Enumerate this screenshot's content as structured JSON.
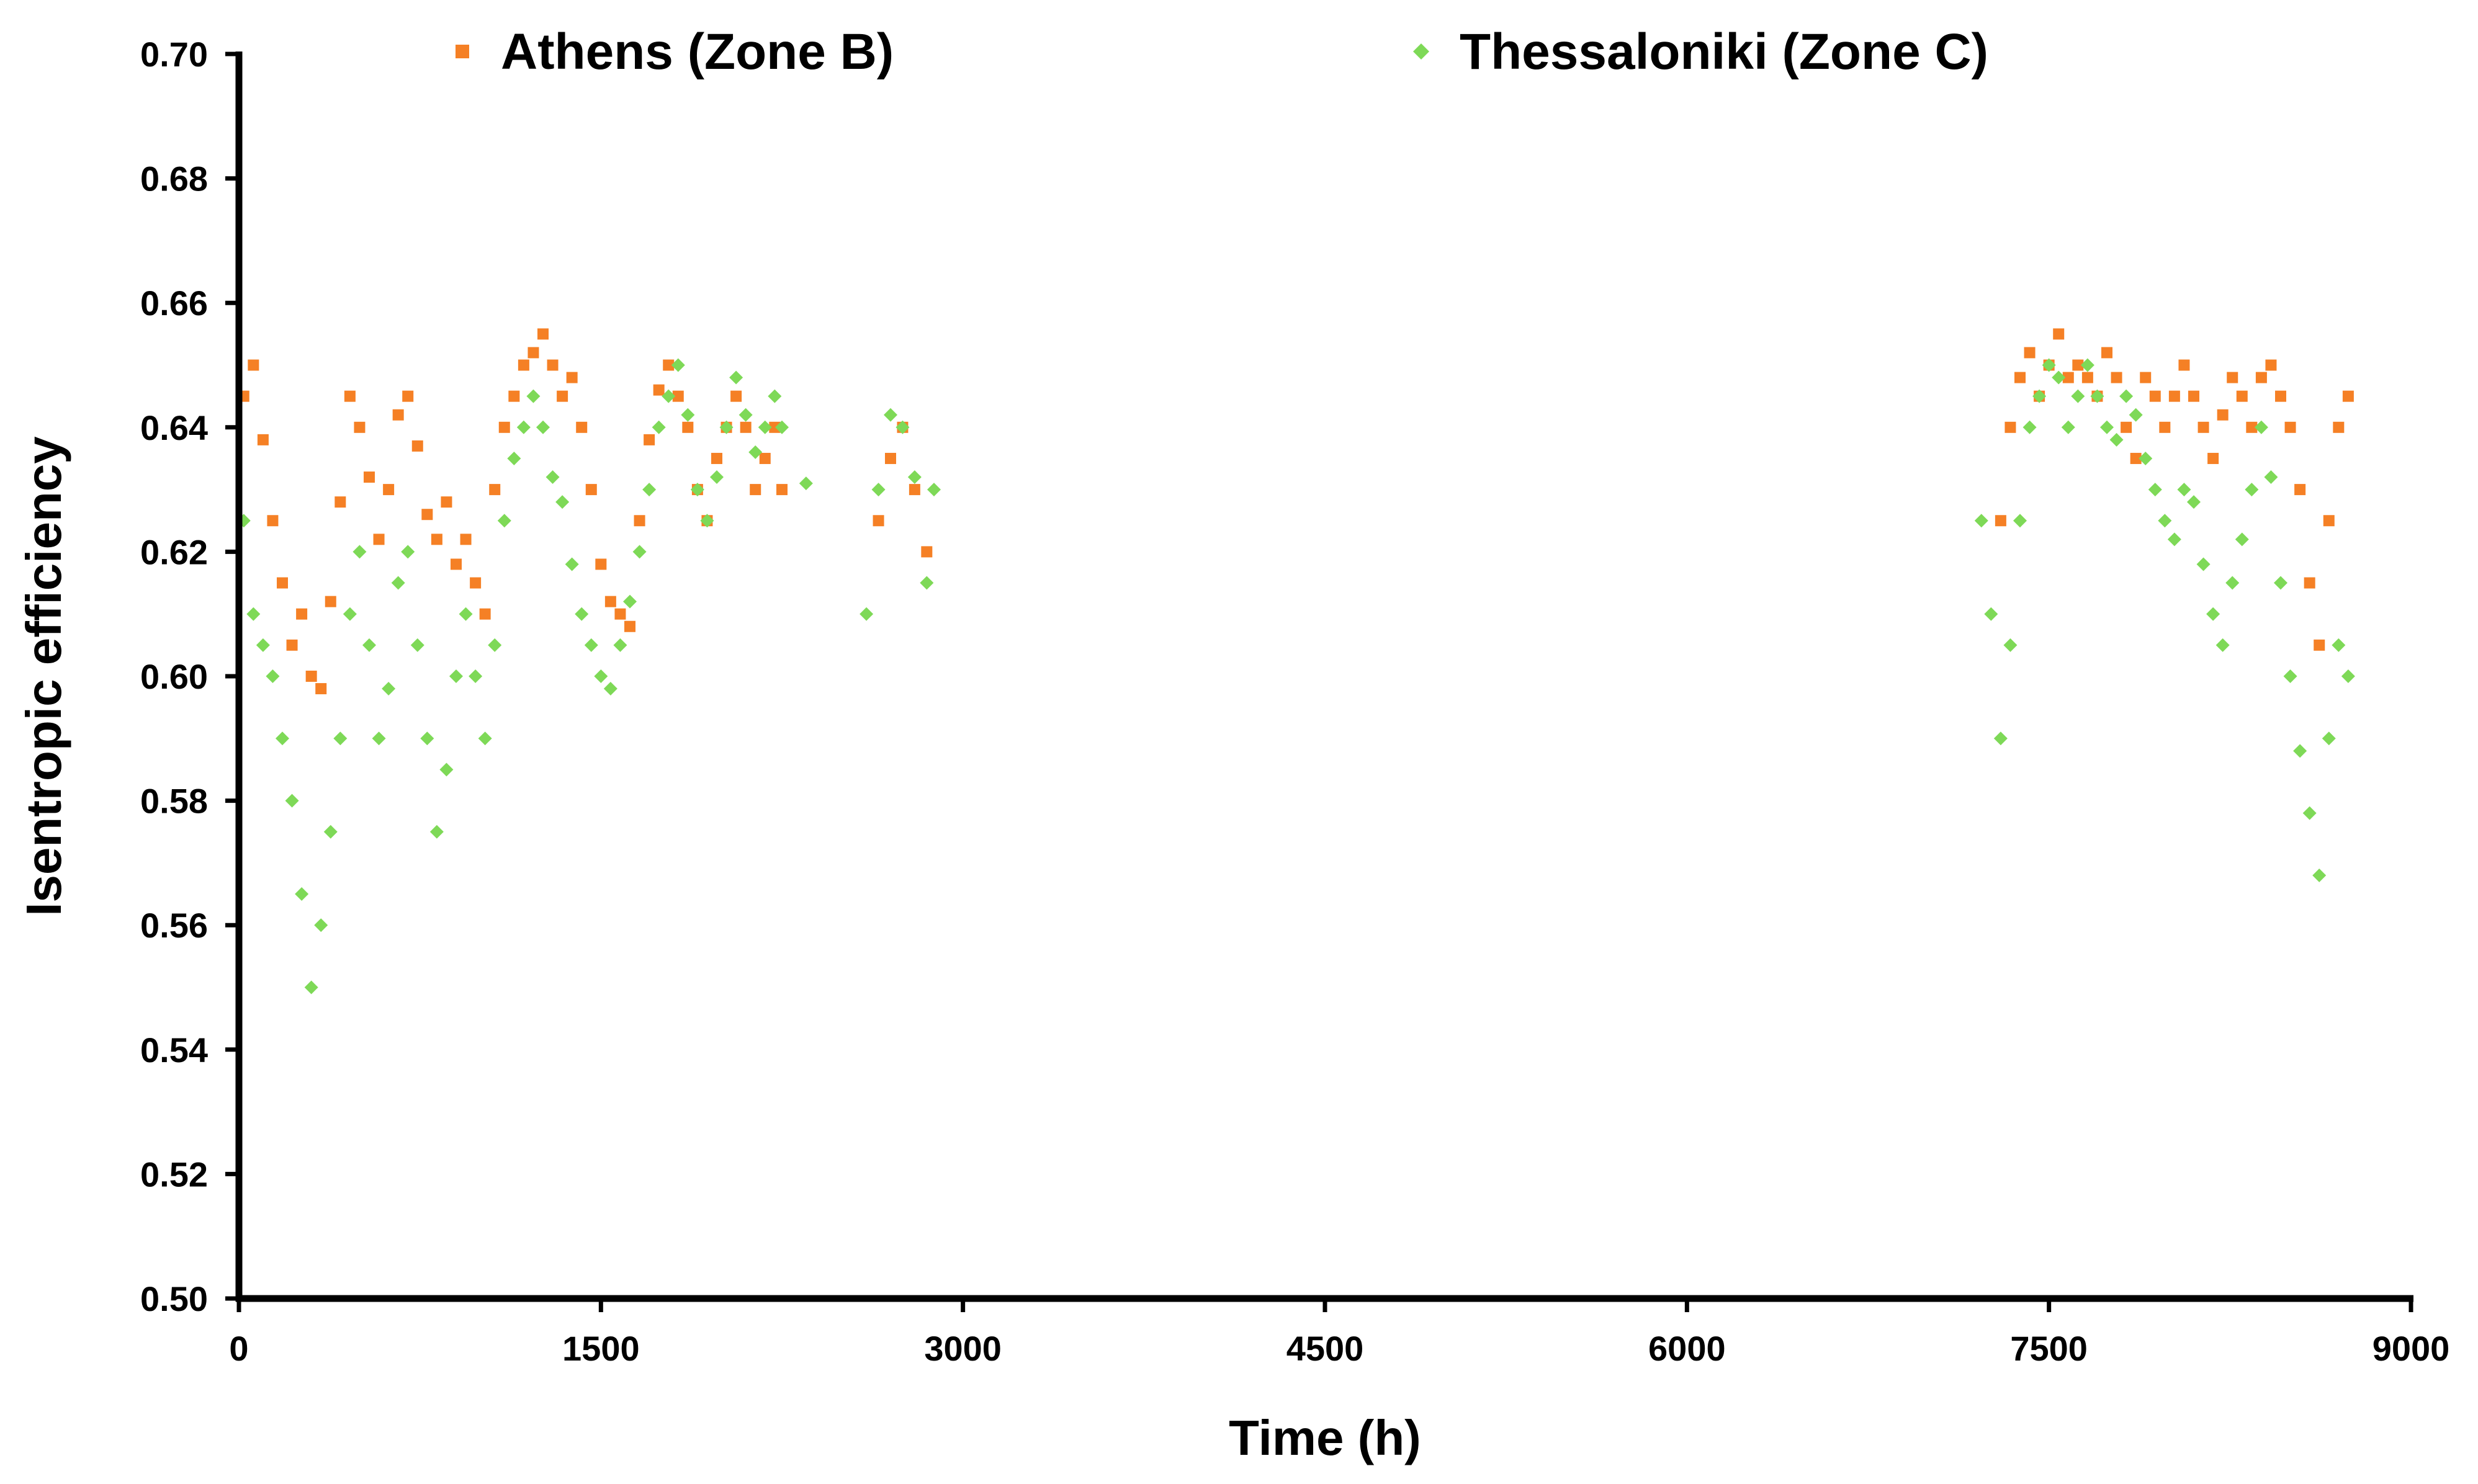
{
  "chart_data": {
    "type": "scatter",
    "title": "",
    "xlabel": "Time (h)",
    "ylabel": "Isentropic efficiency",
    "xlim": [
      0,
      9000
    ],
    "ylim": [
      0.5,
      0.7
    ],
    "x_ticks": [
      0,
      1500,
      3000,
      4500,
      6000,
      7500,
      9000
    ],
    "x_tick_labels": [
      "0",
      "1500",
      "3000",
      "4500",
      "6000",
      "7500",
      "9000"
    ],
    "y_ticks": [
      0.5,
      0.52,
      0.54,
      0.56,
      0.58,
      0.6,
      0.62,
      0.64,
      0.66,
      0.68,
      0.7
    ],
    "y_tick_labels": [
      "0.50",
      "0.52",
      "0.54",
      "0.56",
      "0.58",
      "0.60",
      "0.62",
      "0.64",
      "0.66",
      "0.68",
      "0.70"
    ],
    "grid": false,
    "legend_position": "top",
    "series": [
      {
        "name": "Athens (Zone B)",
        "color": "#f58025",
        "marker": "square",
        "x": [
          20,
          60,
          100,
          140,
          180,
          220,
          260,
          300,
          340,
          380,
          420,
          460,
          500,
          540,
          580,
          620,
          660,
          700,
          740,
          780,
          820,
          860,
          900,
          940,
          980,
          1020,
          1060,
          1100,
          1140,
          1180,
          1220,
          1260,
          1300,
          1340,
          1380,
          1420,
          1460,
          1500,
          1540,
          1580,
          1620,
          1660,
          1700,
          1740,
          1780,
          1820,
          1860,
          1900,
          1940,
          1980,
          2020,
          2060,
          2100,
          2140,
          2180,
          2220,
          2250,
          2650,
          2700,
          2750,
          2800,
          2850,
          7300,
          7340,
          7380,
          7420,
          7460,
          7500,
          7540,
          7580,
          7620,
          7660,
          7700,
          7740,
          7780,
          7820,
          7860,
          7900,
          7940,
          7980,
          8020,
          8060,
          8100,
          8140,
          8180,
          8220,
          8260,
          8300,
          8340,
          8380,
          8420,
          8460,
          8500,
          8540,
          8580,
          8620,
          8660,
          8700,
          8740
        ],
        "y": [
          0.645,
          0.65,
          0.638,
          0.625,
          0.615,
          0.605,
          0.61,
          0.6,
          0.598,
          0.612,
          0.628,
          0.645,
          0.64,
          0.632,
          0.622,
          0.63,
          0.642,
          0.645,
          0.637,
          0.626,
          0.622,
          0.628,
          0.618,
          0.622,
          0.615,
          0.61,
          0.63,
          0.64,
          0.645,
          0.65,
          0.652,
          0.655,
          0.65,
          0.645,
          0.648,
          0.64,
          0.63,
          0.618,
          0.612,
          0.61,
          0.608,
          0.625,
          0.638,
          0.646,
          0.65,
          0.645,
          0.64,
          0.63,
          0.625,
          0.635,
          0.64,
          0.645,
          0.64,
          0.63,
          0.635,
          0.64,
          0.63,
          0.625,
          0.635,
          0.64,
          0.63,
          0.62,
          0.625,
          0.64,
          0.648,
          0.652,
          0.645,
          0.65,
          0.655,
          0.648,
          0.65,
          0.648,
          0.645,
          0.652,
          0.648,
          0.64,
          0.635,
          0.648,
          0.645,
          0.64,
          0.645,
          0.65,
          0.645,
          0.64,
          0.635,
          0.642,
          0.648,
          0.645,
          0.64,
          0.648,
          0.65,
          0.645,
          0.64,
          0.63,
          0.615,
          0.605,
          0.625,
          0.64,
          0.645
        ]
      },
      {
        "name": "Thessaloniki (Zone C)",
        "color": "#7ed957",
        "marker": "diamond",
        "x": [
          20,
          60,
          100,
          140,
          180,
          220,
          260,
          300,
          340,
          380,
          420,
          460,
          500,
          540,
          580,
          620,
          660,
          700,
          740,
          780,
          820,
          860,
          900,
          940,
          980,
          1020,
          1060,
          1100,
          1140,
          1180,
          1220,
          1260,
          1300,
          1340,
          1380,
          1420,
          1460,
          1500,
          1540,
          1580,
          1620,
          1660,
          1700,
          1740,
          1780,
          1820,
          1860,
          1900,
          1940,
          1980,
          2020,
          2060,
          2100,
          2140,
          2180,
          2220,
          2250,
          2350,
          2600,
          2650,
          2700,
          2750,
          2800,
          2850,
          2880,
          7220,
          7260,
          7300,
          7340,
          7380,
          7420,
          7460,
          7500,
          7540,
          7580,
          7620,
          7660,
          7700,
          7740,
          7780,
          7820,
          7860,
          7900,
          7940,
          7980,
          8020,
          8060,
          8100,
          8140,
          8180,
          8220,
          8260,
          8300,
          8340,
          8380,
          8420,
          8460,
          8500,
          8540,
          8580,
          8620,
          8660,
          8700,
          8740
        ],
        "y": [
          0.625,
          0.61,
          0.605,
          0.6,
          0.59,
          0.58,
          0.565,
          0.55,
          0.56,
          0.575,
          0.59,
          0.61,
          0.62,
          0.605,
          0.59,
          0.598,
          0.615,
          0.62,
          0.605,
          0.59,
          0.575,
          0.585,
          0.6,
          0.61,
          0.6,
          0.59,
          0.605,
          0.625,
          0.635,
          0.64,
          0.645,
          0.64,
          0.632,
          0.628,
          0.618,
          0.61,
          0.605,
          0.6,
          0.598,
          0.605,
          0.612,
          0.62,
          0.63,
          0.64,
          0.645,
          0.65,
          0.642,
          0.63,
          0.625,
          0.632,
          0.64,
          0.648,
          0.642,
          0.636,
          0.64,
          0.645,
          0.64,
          0.631,
          0.61,
          0.63,
          0.642,
          0.64,
          0.632,
          0.615,
          0.63,
          0.625,
          0.61,
          0.59,
          0.605,
          0.625,
          0.64,
          0.645,
          0.65,
          0.648,
          0.64,
          0.645,
          0.65,
          0.645,
          0.64,
          0.638,
          0.645,
          0.642,
          0.635,
          0.63,
          0.625,
          0.622,
          0.63,
          0.628,
          0.618,
          0.61,
          0.605,
          0.615,
          0.622,
          0.63,
          0.64,
          0.632,
          0.615,
          0.6,
          0.588,
          0.578,
          0.568,
          0.59,
          0.605,
          0.6
        ]
      }
    ]
  }
}
